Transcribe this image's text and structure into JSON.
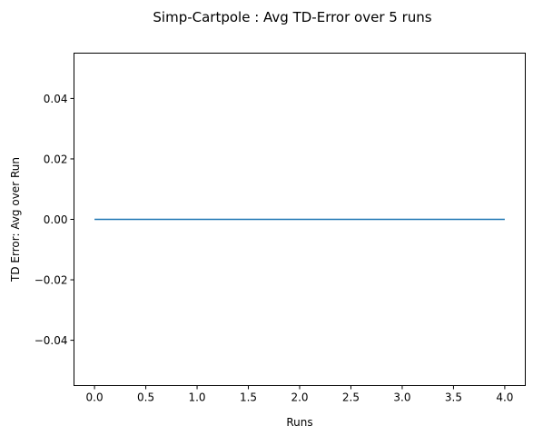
{
  "chart_data": {
    "type": "line",
    "title": "Simp-Cartpole : Avg TD-Error over 5 runs",
    "xlabel": "Runs",
    "ylabel": "TD Error: Avg over Run",
    "xlim": [
      -0.2,
      4.2
    ],
    "ylim": [
      -0.055,
      0.055
    ],
    "xticks": [
      0.0,
      0.5,
      1.0,
      1.5,
      2.0,
      2.5,
      3.0,
      3.5,
      4.0
    ],
    "xtick_labels": [
      "0.0",
      "0.5",
      "1.0",
      "1.5",
      "2.0",
      "2.5",
      "3.0",
      "3.5",
      "4.0"
    ],
    "yticks": [
      -0.04,
      -0.02,
      0.0,
      0.02,
      0.04
    ],
    "ytick_labels": [
      "−0.04",
      "−0.02",
      "0.00",
      "0.02",
      "0.04"
    ],
    "grid": false,
    "series": [
      {
        "x": [
          0,
          1,
          2,
          3,
          4
        ],
        "y": [
          0,
          0,
          0,
          0,
          0
        ],
        "color": "#1f77b4"
      }
    ]
  }
}
